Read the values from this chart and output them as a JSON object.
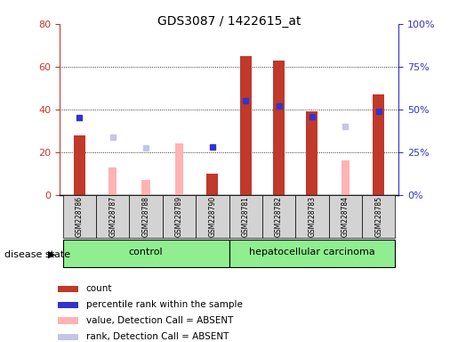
{
  "title": "GDS3087 / 1422615_at",
  "samples": [
    "GSM228786",
    "GSM228787",
    "GSM228788",
    "GSM228789",
    "GSM228790",
    "GSM228781",
    "GSM228782",
    "GSM228783",
    "GSM228784",
    "GSM228785"
  ],
  "groups": [
    "control",
    "control",
    "control",
    "control",
    "control",
    "hepatocellular carcinoma",
    "hepatocellular carcinoma",
    "hepatocellular carcinoma",
    "hepatocellular carcinoma",
    "hepatocellular carcinoma"
  ],
  "count": [
    28,
    null,
    null,
    null,
    10,
    65,
    63,
    39,
    null,
    47
  ],
  "percentile_rank": [
    45,
    null,
    null,
    null,
    28,
    55,
    52,
    46,
    null,
    49
  ],
  "value_absent": [
    null,
    13,
    7,
    24,
    null,
    null,
    null,
    null,
    16,
    null
  ],
  "rank_absent": [
    null,
    27,
    22,
    null,
    null,
    null,
    null,
    null,
    32,
    null
  ],
  "ylim_left": [
    0,
    80
  ],
  "ylim_right": [
    0,
    100
  ],
  "yticks_left": [
    0,
    20,
    40,
    60,
    80
  ],
  "yticks_right": [
    0,
    25,
    50,
    75,
    100
  ],
  "ytick_labels_right": [
    "0%",
    "25%",
    "50%",
    "75%",
    "100%"
  ],
  "bar_color_count": "#c0392b",
  "color_percentile": "#3333cc",
  "color_value_absent": "#ffb3b3",
  "color_rank_absent": "#c5c5e8",
  "control_label": "control",
  "carcinoma_label": "hepatocellular carcinoma",
  "group_label": "disease state",
  "legend_items": [
    {
      "label": "count",
      "color": "#c0392b"
    },
    {
      "label": "percentile rank within the sample",
      "color": "#3333cc"
    },
    {
      "label": "value, Detection Call = ABSENT",
      "color": "#ffb3b3"
    },
    {
      "label": "rank, Detection Call = ABSENT",
      "color": "#c5c5e8"
    }
  ],
  "bar_width": 0.35,
  "absent_bar_width": 0.25
}
